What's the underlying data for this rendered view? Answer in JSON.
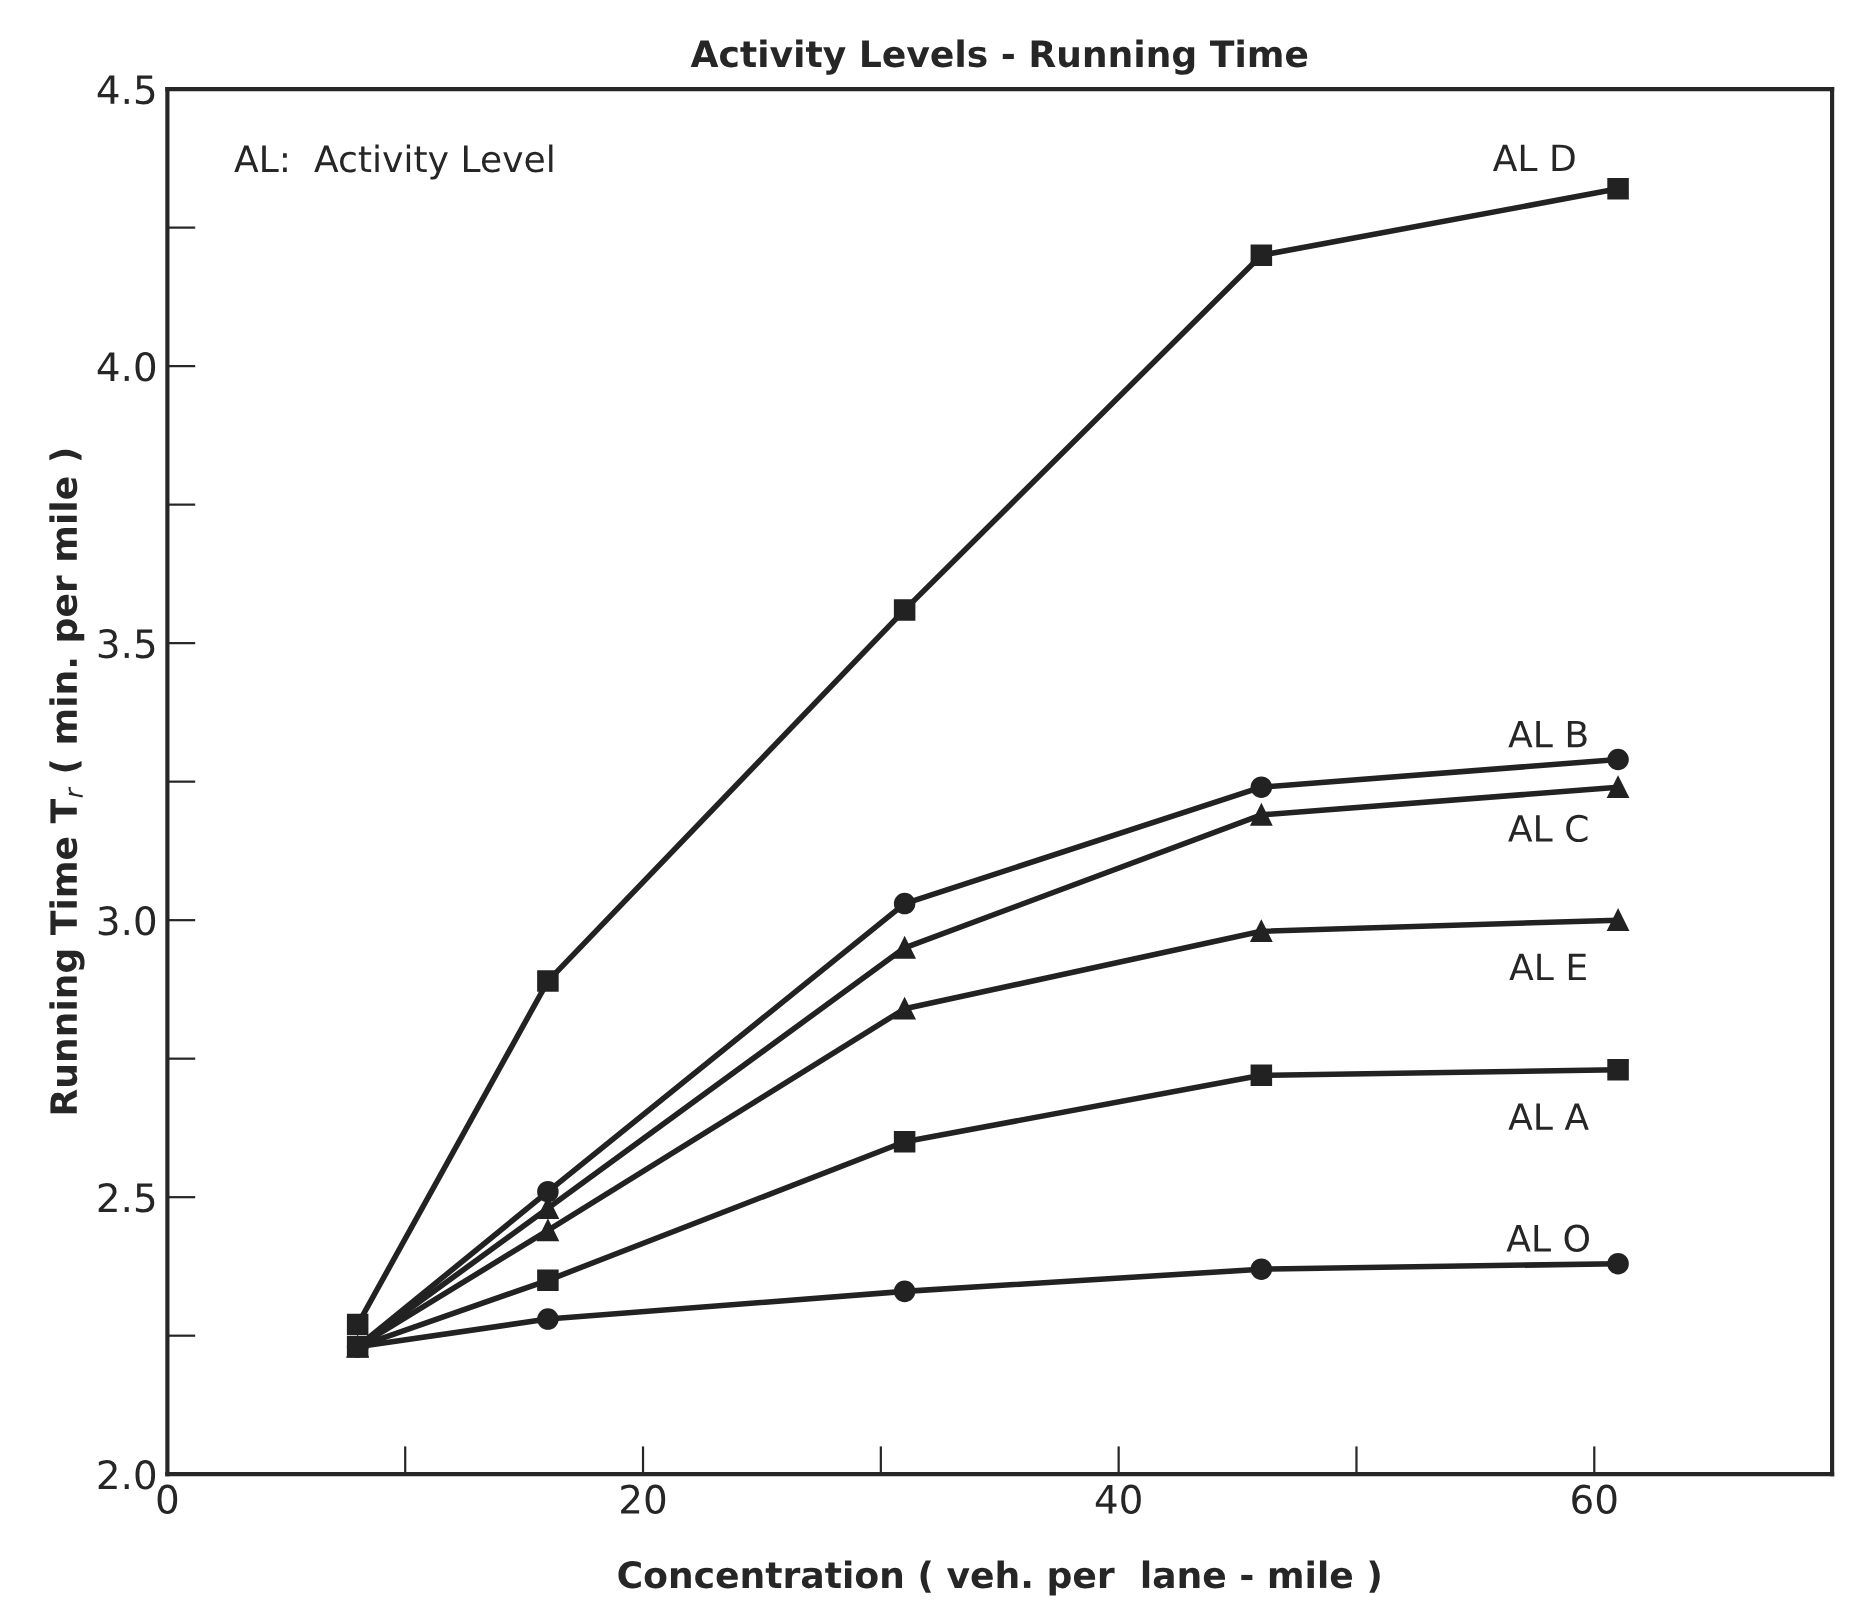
{
  "chart_data": {
    "type": "line",
    "title": "Activity Levels - Running Time",
    "xlabel": "Concentration ( veh. per  lane - mile )",
    "ylabel": "Running Time T$_{r}$ ( min. per mile )",
    "annotations": [
      "AL:  Activity Level"
    ],
    "x": [
      8,
      16,
      31,
      46,
      61
    ],
    "series": [
      {
        "name": "AL D",
        "color": "#222222",
        "marker": "square",
        "values": [
          2.27,
          2.89,
          3.56,
          4.2,
          4.32
        ]
      },
      {
        "name": "AL B",
        "color": "#222222",
        "marker": "circle",
        "values": [
          2.23,
          2.51,
          3.03,
          3.24,
          3.29
        ]
      },
      {
        "name": "AL C",
        "color": "#222222",
        "marker": "triangle",
        "values": [
          2.23,
          2.48,
          2.95,
          3.19,
          3.24
        ]
      },
      {
        "name": "AL E",
        "color": "#222222",
        "marker": "triangle",
        "values": [
          2.23,
          2.44,
          2.84,
          2.98,
          3.0
        ]
      },
      {
        "name": "AL A",
        "color": "#222222",
        "marker": "square",
        "values": [
          2.23,
          2.35,
          2.6,
          2.72,
          2.73
        ]
      },
      {
        "name": "AL O",
        "color": "#222222",
        "marker": "circle",
        "values": [
          2.23,
          2.28,
          2.33,
          2.37,
          2.38
        ]
      }
    ],
    "xlim": [
      0,
      70
    ],
    "xticks": [
      0,
      {
        "value": 10,
        "label": null
      },
      20,
      {
        "value": 30,
        "label": null
      },
      40,
      {
        "value": 50,
        "label": null
      },
      60
    ],
    "ylim": [
      2.0,
      4.5
    ],
    "yticks": [
      {
        "value": 2,
        "label": "2.0"
      },
      {
        "value": 2.25,
        "label": null
      },
      2.5,
      {
        "value": 2.75,
        "label": null
      },
      {
        "value": 3,
        "label": "3.0"
      },
      {
        "value": 3.25,
        "label": null
      },
      3.5,
      {
        "value": 3.75,
        "label": null
      },
      {
        "value": 4,
        "label": "4.0"
      },
      {
        "value": 4.25,
        "label": null
      },
      4.5
    ],
    "grid": false,
    "legend": false,
    "line_style": "solid"
  }
}
